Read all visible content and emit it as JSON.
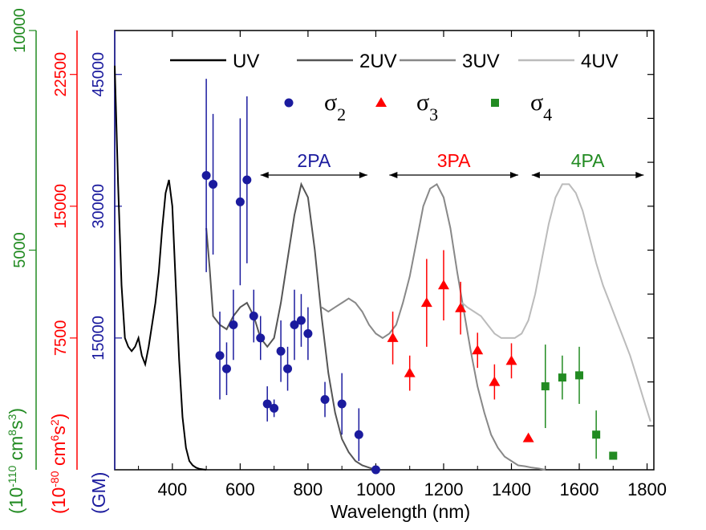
{
  "chart_data": {
    "type": "scatter",
    "xlabel": "Wavelength (nm)",
    "xlim": [
      230,
      1820
    ],
    "x_ticks": [
      "400",
      "600",
      "800",
      "1000",
      "1200",
      "1400",
      "1600",
      "1800"
    ],
    "axes": [
      {
        "name": "GM",
        "color": "#1b1b9e",
        "unit": "(GM)",
        "ylim": [
          0,
          50000
        ],
        "ticks": [
          {
            "value": 15000,
            "label": "15000"
          },
          {
            "value": 30000,
            "label": "30000"
          },
          {
            "value": 45000,
            "label": "45000"
          }
        ]
      },
      {
        "name": "sigma3",
        "color": "#ff0000",
        "unit_prefix": "(10",
        "unit_exp": "-80",
        "unit_mid": " cm",
        "unit_exp2": "6",
        "unit_mid2": "s",
        "unit_exp3": "2",
        "unit_suffix": ")",
        "ylim": [
          0,
          25000
        ],
        "ticks": [
          {
            "value": 7500,
            "label": "7500"
          },
          {
            "value": 15000,
            "label": "15000"
          },
          {
            "value": 22500,
            "label": "22500"
          }
        ]
      },
      {
        "name": "sigma4",
        "color": "#228b22",
        "unit_prefix": "(10",
        "unit_exp": "-110",
        "unit_mid": " cm",
        "unit_exp2": "8",
        "unit_mid2": "s",
        "unit_exp3": "3",
        "unit_suffix": ")",
        "ylim": [
          0,
          10000
        ],
        "ticks": [
          {
            "value": 5000,
            "label": "5000"
          },
          {
            "value": 10000,
            "label": "10000"
          }
        ]
      }
    ],
    "line_legend": [
      "UV",
      "2UV",
      "3UV",
      "4UV"
    ],
    "marker_legend": [
      {
        "label": "σ",
        "sub": "2",
        "marker": "circle",
        "color": "#1b1b9e"
      },
      {
        "label": "σ",
        "sub": "3",
        "marker": "triangle",
        "color": "#ff0000"
      },
      {
        "label": "σ",
        "sub": "4",
        "marker": "square",
        "color": "#228b22"
      }
    ],
    "annotations": [
      {
        "text": "2PA",
        "x_from": 660,
        "x_to": 975,
        "color": "#1b1b9e"
      },
      {
        "text": "3PA",
        "x_from": 1040,
        "x_to": 1420,
        "color": "#ff0000"
      },
      {
        "text": "4PA",
        "x_from": 1460,
        "x_to": 1790,
        "color": "#228b22"
      }
    ],
    "uv_spectra": [
      {
        "name": "UV",
        "color": "#000000",
        "x": [
          230,
          240,
          250,
          260,
          270,
          280,
          290,
          300,
          310,
          320,
          330,
          340,
          350,
          360,
          370,
          380,
          390,
          400,
          410,
          420,
          430,
          440,
          450,
          460,
          470,
          480,
          490,
          500
        ],
        "y": [
          0.92,
          0.65,
          0.42,
          0.3,
          0.28,
          0.27,
          0.28,
          0.3,
          0.26,
          0.24,
          0.28,
          0.33,
          0.38,
          0.45,
          0.55,
          0.63,
          0.66,
          0.6,
          0.42,
          0.25,
          0.12,
          0.05,
          0.02,
          0.01,
          0.005,
          0.002,
          0.001,
          0.0
        ]
      },
      {
        "name": "2UV",
        "color": "#555555",
        "x": [
          500,
          510,
          520,
          540,
          560,
          580,
          600,
          620,
          640,
          660,
          680,
          700,
          720,
          740,
          760,
          780,
          800,
          820,
          840,
          860,
          880,
          900,
          920,
          940,
          960,
          980,
          1000
        ],
        "y": [
          0.55,
          0.46,
          0.35,
          0.33,
          0.32,
          0.35,
          0.37,
          0.38,
          0.35,
          0.3,
          0.28,
          0.3,
          0.38,
          0.48,
          0.58,
          0.65,
          0.62,
          0.5,
          0.35,
          0.22,
          0.13,
          0.07,
          0.04,
          0.02,
          0.01,
          0.005,
          0.0
        ]
      },
      {
        "name": "3UV",
        "color": "#888888",
        "x": [
          840,
          860,
          880,
          900,
          920,
          940,
          960,
          980,
          1000,
          1020,
          1040,
          1060,
          1080,
          1100,
          1120,
          1140,
          1160,
          1180,
          1200,
          1220,
          1240,
          1260,
          1280,
          1300,
          1320,
          1340,
          1360,
          1380,
          1400,
          1420,
          1440,
          1460,
          1480,
          1500
        ],
        "y": [
          0.37,
          0.36,
          0.37,
          0.38,
          0.39,
          0.38,
          0.36,
          0.33,
          0.31,
          0.3,
          0.31,
          0.33,
          0.38,
          0.44,
          0.52,
          0.6,
          0.64,
          0.65,
          0.62,
          0.55,
          0.45,
          0.36,
          0.27,
          0.19,
          0.13,
          0.08,
          0.05,
          0.03,
          0.02,
          0.01,
          0.008,
          0.005,
          0.003,
          0.0
        ]
      },
      {
        "name": "4UV",
        "color": "#bbbbbb",
        "x": [
          1255,
          1270,
          1290,
          1310,
          1330,
          1350,
          1370,
          1390,
          1410,
          1430,
          1450,
          1470,
          1490,
          1510,
          1530,
          1550,
          1570,
          1590,
          1610,
          1630,
          1650,
          1670,
          1690,
          1710,
          1730,
          1750,
          1770,
          1790,
          1810
        ],
        "y": [
          0.38,
          0.37,
          0.36,
          0.35,
          0.33,
          0.31,
          0.3,
          0.3,
          0.3,
          0.31,
          0.34,
          0.4,
          0.48,
          0.56,
          0.62,
          0.65,
          0.65,
          0.63,
          0.59,
          0.53,
          0.47,
          0.42,
          0.38,
          0.34,
          0.3,
          0.26,
          0.21,
          0.16,
          0.11
        ]
      }
    ],
    "series": [
      {
        "name": "σ2",
        "axis": "GM",
        "marker": "circle",
        "color": "#1b1b9e",
        "points": [
          {
            "x": 500,
            "y": 33500,
            "err": 11000
          },
          {
            "x": 520,
            "y": 32500,
            "err": 8000
          },
          {
            "x": 540,
            "y": 13000,
            "err": 5000
          },
          {
            "x": 560,
            "y": 11500,
            "err": 3000
          },
          {
            "x": 580,
            "y": 16500,
            "err": 4000
          },
          {
            "x": 600,
            "y": 30500,
            "err": 9500
          },
          {
            "x": 620,
            "y": 33000,
            "err": 9500
          },
          {
            "x": 640,
            "y": 17500,
            "err": 3000
          },
          {
            "x": 660,
            "y": 15000,
            "err": 2500
          },
          {
            "x": 680,
            "y": 7500,
            "err": 2000
          },
          {
            "x": 700,
            "y": 7000,
            "err": 1000
          },
          {
            "x": 720,
            "y": 13500,
            "err": 3500
          },
          {
            "x": 740,
            "y": 11500,
            "err": 2500
          },
          {
            "x": 760,
            "y": 16500,
            "err": 4000
          },
          {
            "x": 780,
            "y": 17000,
            "err": 3000
          },
          {
            "x": 800,
            "y": 15500,
            "err": 3000
          },
          {
            "x": 850,
            "y": 8000,
            "err": 2000
          },
          {
            "x": 900,
            "y": 7500,
            "err": 3500
          },
          {
            "x": 950,
            "y": 4000,
            "err": 3000
          },
          {
            "x": 1000,
            "y": 0,
            "err": 0
          }
        ]
      },
      {
        "name": "σ3",
        "axis": "sigma3",
        "marker": "triangle",
        "color": "#ff0000",
        "points": [
          {
            "x": 1050,
            "y": 7500,
            "err": 1500
          },
          {
            "x": 1100,
            "y": 5500,
            "err": 1000
          },
          {
            "x": 1150,
            "y": 9500,
            "err": 2500
          },
          {
            "x": 1200,
            "y": 10500,
            "err": 2000
          },
          {
            "x": 1250,
            "y": 9200,
            "err": 1500
          },
          {
            "x": 1300,
            "y": 6800,
            "err": 1000
          },
          {
            "x": 1350,
            "y": 5000,
            "err": 1000
          },
          {
            "x": 1400,
            "y": 6200,
            "err": 1000
          },
          {
            "x": 1450,
            "y": 1800,
            "err": 0
          }
        ]
      },
      {
        "name": "σ4",
        "axis": "sigma4",
        "marker": "square",
        "color": "#228b22",
        "points": [
          {
            "x": 1500,
            "y": 1900,
            "err": 950
          },
          {
            "x": 1550,
            "y": 2100,
            "err": 500
          },
          {
            "x": 1600,
            "y": 2150,
            "err": 650
          },
          {
            "x": 1650,
            "y": 800,
            "err": 550
          },
          {
            "x": 1700,
            "y": 320,
            "err": 0
          }
        ]
      }
    ]
  }
}
